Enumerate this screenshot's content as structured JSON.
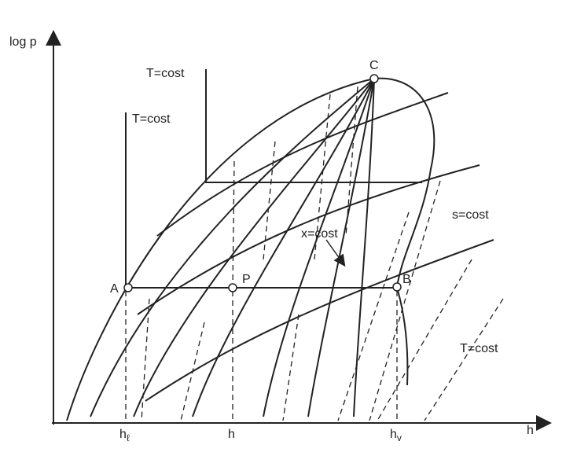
{
  "axes": {
    "y_label": "log p",
    "x_label": "h",
    "x_ticks": [
      {
        "main": "h",
        "sub": "ℓ"
      },
      {
        "main": "h"
      },
      {
        "main": "h",
        "sub": "v"
      }
    ]
  },
  "points": [
    "A",
    "P",
    "B",
    "C"
  ],
  "curve_labels": [
    "T=cost",
    "T=cost",
    "s=cost",
    "x=cost",
    "T=cost"
  ]
}
